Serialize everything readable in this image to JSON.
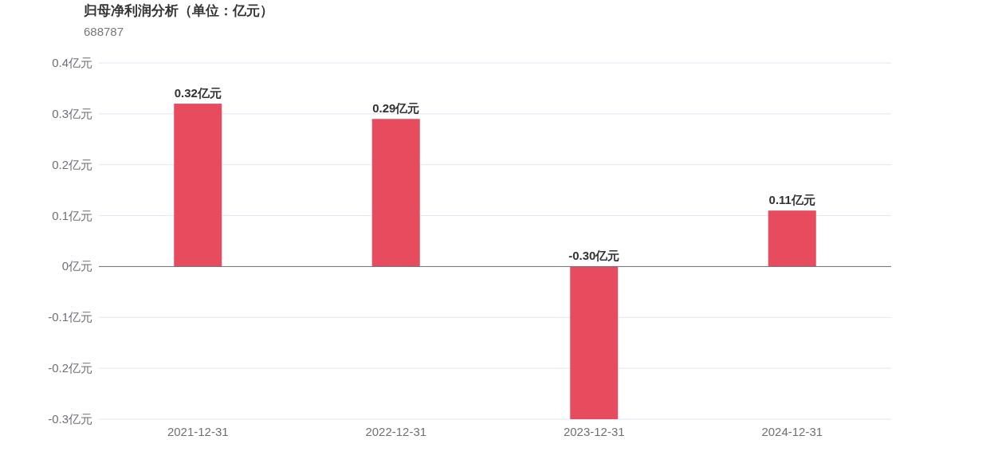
{
  "chart_data": {
    "type": "bar",
    "title": "归母净利润分析（单位：亿元）",
    "subtitle": "688787",
    "categories": [
      "2021-12-31",
      "2022-12-31",
      "2023-12-31",
      "2024-12-31"
    ],
    "values": [
      0.32,
      0.29,
      -0.3,
      0.11
    ],
    "value_labels": [
      "0.32亿元",
      "0.29亿元",
      "-0.30亿元",
      "0.11亿元"
    ],
    "color": "#e64c5e",
    "ylim": [
      -0.3,
      0.4
    ],
    "yticks": [
      {
        "value": -0.3,
        "label": "-0.3亿元"
      },
      {
        "value": -0.2,
        "label": "-0.2亿元"
      },
      {
        "value": -0.1,
        "label": "-0.1亿元"
      },
      {
        "value": 0,
        "label": "0亿元"
      },
      {
        "value": 0.1,
        "label": "0.1亿元"
      },
      {
        "value": 0.2,
        "label": "0.2亿元"
      },
      {
        "value": 0.3,
        "label": "0.3亿元"
      },
      {
        "value": 0.4,
        "label": "0.4亿元"
      }
    ],
    "grid": "y"
  }
}
